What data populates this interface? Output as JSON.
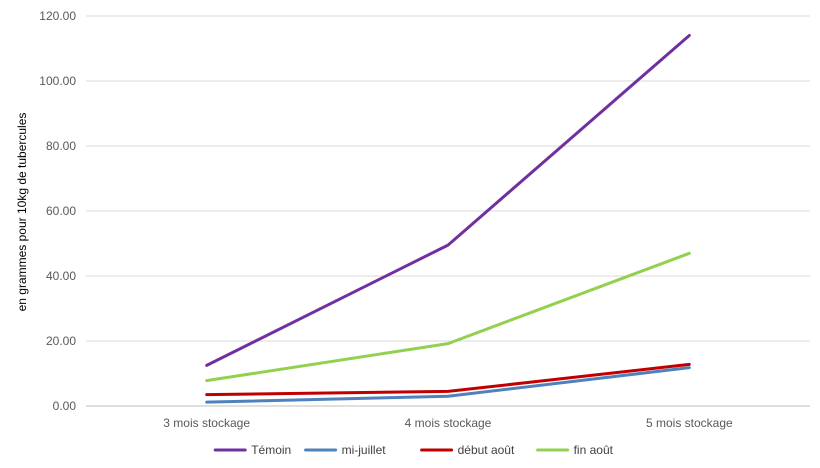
{
  "chart_data": {
    "type": "line",
    "title": "",
    "xlabel": "",
    "ylabel": "en grammes pour 10kg de tubercules",
    "categories": [
      "3 mois stockage",
      "4 mois stockage",
      "5 mois stockage"
    ],
    "ylim": [
      0,
      120
    ],
    "yticks": [
      0,
      20,
      40,
      60,
      80,
      100,
      120
    ],
    "ytick_labels": [
      "0.00",
      "20.00",
      "40.00",
      "60.00",
      "80.00",
      "100.00",
      "120.00"
    ],
    "grid": "horizontal",
    "legend_position": "bottom",
    "series": [
      {
        "name": "Témoin",
        "color": "#7030a0",
        "values": [
          12.5,
          49.5,
          114.0
        ]
      },
      {
        "name": "mi-juillet",
        "color": "#4f81bd",
        "values": [
          1.2,
          3.0,
          11.8
        ]
      },
      {
        "name": "début août",
        "color": "#c00000",
        "values": [
          3.5,
          4.5,
          12.8
        ]
      },
      {
        "name": "fin août",
        "color": "#92d050",
        "values": [
          7.8,
          19.2,
          47.0
        ]
      }
    ]
  }
}
